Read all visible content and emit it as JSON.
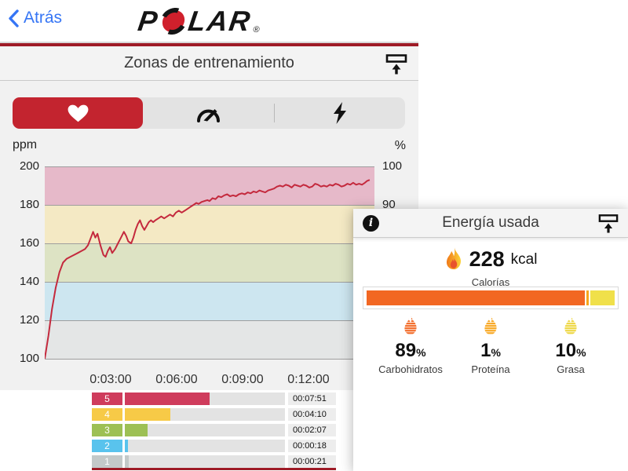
{
  "top_bar": {
    "back_label": "Atrás",
    "back_color": "#3575f5"
  },
  "brand": {
    "name": "POLAR",
    "part1": "P",
    "part2": "LAR",
    "registered": "®",
    "o_color": "#d0202c",
    "text_color": "#151515"
  },
  "icons": {
    "back": "chevron-left-icon",
    "export": "share-upload-icon",
    "info": "info-icon",
    "tabs": [
      "heart-icon",
      "speedometer-icon",
      "lightning-bolt-icon"
    ],
    "calories": "flame-icon"
  },
  "zones_panel": {
    "title": "Zonas de entrenamiento",
    "unit_left": "ppm",
    "unit_right": "%",
    "accent_rule_color": "#9e1b26",
    "selected_tab_color": "#c3242f",
    "tabs": [
      {
        "id": "heart-rate",
        "selected": true
      },
      {
        "id": "speed",
        "selected": false
      },
      {
        "id": "power",
        "selected": false
      }
    ]
  },
  "energy_panel": {
    "title": "Energía usada",
    "calories_value": "228",
    "calories_unit": "kcal",
    "calories_label": "Calorías"
  },
  "chart_data": [
    {
      "type": "line",
      "name": "heart_rate_over_time",
      "ylabel_left": "ppm",
      "ylabel_right": "%",
      "ylim": [
        100,
        200
      ],
      "xlim_seconds": [
        0,
        900
      ],
      "grid": true,
      "line_color": "#c4293d",
      "y_ticks_left": [
        100,
        120,
        140,
        160,
        180,
        200
      ],
      "y_ticks_right": [
        {
          "label": "100",
          "at_bpm": 200
        },
        {
          "label": "90",
          "at_bpm": 180
        }
      ],
      "x_ticks": [
        {
          "label": "0:03:00",
          "seconds": 180
        },
        {
          "label": "0:06:00",
          "seconds": 360
        },
        {
          "label": "0:09:00",
          "seconds": 540
        },
        {
          "label": "0:12:00",
          "seconds": 720
        }
      ],
      "bands": [
        {
          "from": 180,
          "to": 200,
          "color": "#e6b9c9"
        },
        {
          "from": 160,
          "to": 180,
          "color": "#f4e9c4"
        },
        {
          "from": 140,
          "to": 160,
          "color": "#dde3c4"
        },
        {
          "from": 120,
          "to": 140,
          "color": "#cde6f0"
        },
        {
          "from": 100,
          "to": 120,
          "color": "#e4e6e6"
        }
      ],
      "series": [
        {
          "name": "heart_rate_bpm",
          "points": [
            [
              0,
              100
            ],
            [
              10,
              112
            ],
            [
              20,
              126
            ],
            [
              30,
              137
            ],
            [
              40,
              145
            ],
            [
              50,
              150
            ],
            [
              60,
              152
            ],
            [
              70,
              153
            ],
            [
              80,
              154
            ],
            [
              90,
              155
            ],
            [
              100,
              156
            ],
            [
              110,
              157
            ],
            [
              118,
              159
            ],
            [
              126,
              163
            ],
            [
              132,
              166
            ],
            [
              138,
              163
            ],
            [
              144,
              165
            ],
            [
              152,
              159
            ],
            [
              160,
              154
            ],
            [
              166,
              153
            ],
            [
              172,
              156
            ],
            [
              178,
              158
            ],
            [
              184,
              155
            ],
            [
              192,
              157
            ],
            [
              200,
              160
            ],
            [
              208,
              163
            ],
            [
              216,
              166
            ],
            [
              222,
              164
            ],
            [
              228,
              161
            ],
            [
              236,
              160
            ],
            [
              242,
              163
            ],
            [
              248,
              167
            ],
            [
              254,
              170
            ],
            [
              260,
              172
            ],
            [
              266,
              169
            ],
            [
              272,
              167
            ],
            [
              278,
              169
            ],
            [
              284,
              171
            ],
            [
              290,
              172
            ],
            [
              296,
              171
            ],
            [
              302,
              172
            ],
            [
              310,
              173
            ],
            [
              318,
              174
            ],
            [
              326,
              173
            ],
            [
              334,
              174
            ],
            [
              342,
              175
            ],
            [
              350,
              174
            ],
            [
              358,
              176
            ],
            [
              366,
              177
            ],
            [
              374,
              176
            ],
            [
              382,
              177
            ],
            [
              390,
              178
            ],
            [
              398,
              179
            ],
            [
              406,
              180
            ],
            [
              414,
              181
            ],
            [
              420,
              180.5
            ],
            [
              428,
              181.5
            ],
            [
              436,
              182
            ],
            [
              444,
              182.5
            ],
            [
              450,
              182
            ],
            [
              458,
              183.5
            ],
            [
              466,
              183
            ],
            [
              474,
              184.5
            ],
            [
              482,
              184
            ],
            [
              490,
              185
            ],
            [
              498,
              185.5
            ],
            [
              506,
              184.5
            ],
            [
              514,
              185
            ],
            [
              522,
              184.5
            ],
            [
              530,
              185.5
            ],
            [
              538,
              186
            ],
            [
              546,
              185.5
            ],
            [
              554,
              186.5
            ],
            [
              562,
              186
            ],
            [
              570,
              187
            ],
            [
              578,
              186.5
            ],
            [
              586,
              187.5
            ],
            [
              594,
              187
            ],
            [
              602,
              186.5
            ],
            [
              610,
              187.5
            ],
            [
              618,
              188
            ],
            [
              626,
              188.5
            ],
            [
              634,
              189.5
            ],
            [
              642,
              190
            ],
            [
              650,
              189.5
            ],
            [
              658,
              190.5
            ],
            [
              666,
              190
            ],
            [
              674,
              189
            ],
            [
              682,
              190.5
            ],
            [
              690,
              190
            ],
            [
              698,
              189.5
            ],
            [
              706,
              190.5
            ],
            [
              714,
              190
            ],
            [
              722,
              189
            ],
            [
              730,
              189.5
            ],
            [
              738,
              191
            ],
            [
              746,
              190.5
            ],
            [
              754,
              189.5
            ],
            [
              762,
              190
            ],
            [
              770,
              189.5
            ],
            [
              778,
              190.5
            ],
            [
              786,
              190
            ],
            [
              794,
              191
            ],
            [
              802,
              190.5
            ],
            [
              810,
              189.5
            ],
            [
              818,
              190
            ],
            [
              826,
              191
            ],
            [
              834,
              190.5
            ],
            [
              842,
              191.5
            ],
            [
              850,
              190.5
            ],
            [
              858,
              191
            ],
            [
              866,
              190.5
            ],
            [
              874,
              191.5
            ],
            [
              880,
              192.5
            ],
            [
              887,
              193
            ]
          ]
        }
      ]
    },
    {
      "type": "bar",
      "name": "time_in_zones",
      "total_seconds": 887,
      "categories": [
        "5",
        "4",
        "3",
        "2",
        "1"
      ],
      "values_seconds": [
        471,
        250,
        127,
        18,
        21
      ],
      "time_labels": [
        "00:07:51",
        "00:04:10",
        "00:02:07",
        "00:00:18",
        "00:00:21"
      ],
      "colors": [
        "#cf3c5c",
        "#f7ca47",
        "#9dc054",
        "#59c3ed",
        "#c3c9c9"
      ],
      "track_color": "#e3e3e3"
    },
    {
      "type": "bar",
      "name": "energy_split_percent",
      "title": "Energía usada",
      "total": "228kcal",
      "categories": [
        "Carbohidratos",
        "Proteína",
        "Grasa"
      ],
      "values": [
        89,
        1,
        10
      ],
      "unit": "%",
      "colors": [
        "#f26722",
        "#f8a51b",
        "#f0e04a"
      ]
    }
  ]
}
